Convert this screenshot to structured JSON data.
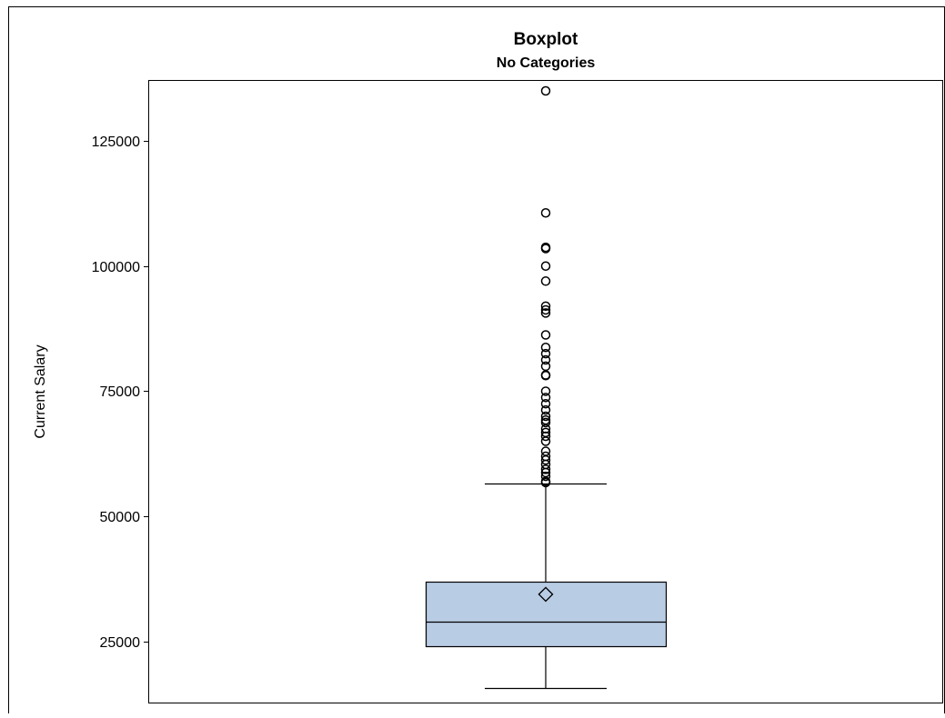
{
  "chart_data": {
    "type": "boxplot",
    "title": "Boxplot",
    "subtitle": "No Categories",
    "xlabel": "",
    "ylabel": "Current Salary",
    "ylim": [
      12800,
      137000
    ],
    "yticks": [
      25000,
      50000,
      75000,
      100000,
      125000
    ],
    "grid": false,
    "box": {
      "min": 15750,
      "q1": 24000,
      "median": 28875,
      "q3": 36938,
      "mean": 34420,
      "whisker_high": 56550,
      "fill": "#b8cce4"
    },
    "outliers": [
      135000,
      110625,
      103750,
      103500,
      100000,
      97000,
      92000,
      91250,
      90625,
      86250,
      83750,
      82500,
      81250,
      80000,
      78250,
      78125,
      75000,
      73750,
      72500,
      71250,
      70000,
      69250,
      68750,
      67500,
      66750,
      66000,
      65000,
      63000,
      62000,
      61250,
      60375,
      59400,
      58750,
      58000,
      57000,
      56750
    ]
  }
}
